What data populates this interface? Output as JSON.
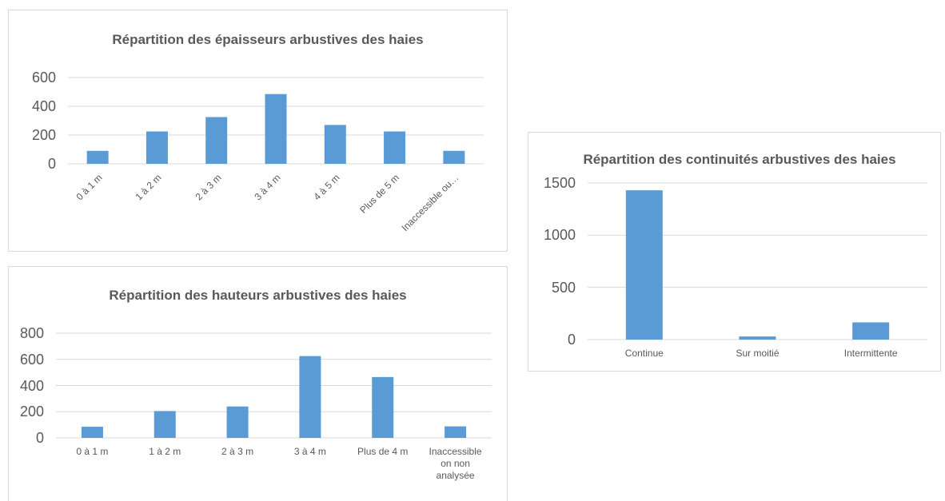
{
  "chart_data": [
    {
      "type": "bar",
      "title": "Répartition des épaisseurs arbustives des haies",
      "categories": [
        "0 à 1 m",
        "1 à 2 m",
        "2 à 3 m",
        "3 à 4 m",
        "4 à 5 m",
        "Plus de 5 m",
        "Inaccessible ou…"
      ],
      "values": [
        90,
        225,
        325,
        485,
        270,
        225,
        90
      ],
      "color": "#5b9bd5",
      "ylim": [
        0,
        600
      ],
      "yticks": [
        0,
        200,
        400,
        600
      ],
      "grid": true,
      "rotated_labels": true
    },
    {
      "type": "bar",
      "title": "Répartition des hauteurs arbustives des haies",
      "categories": [
        "0 à 1 m",
        "1 à 2 m",
        "2 à 3 m",
        "3 à 4 m",
        "Plus de 4 m",
        "Inaccessible on non analysée"
      ],
      "values": [
        85,
        205,
        240,
        625,
        465,
        88
      ],
      "color": "#5b9bd5",
      "ylim": [
        0,
        800
      ],
      "yticks": [
        0,
        200,
        400,
        600,
        800
      ],
      "grid": true,
      "rotated_labels": false
    },
    {
      "type": "bar",
      "title": "Répartition des continuités arbustives des haies",
      "categories": [
        "Continue",
        "Sur moitié",
        "Intermittente"
      ],
      "values": [
        1430,
        30,
        165
      ],
      "color": "#5b9bd5",
      "ylim": [
        0,
        1500
      ],
      "yticks": [
        0,
        500,
        1000,
        1500
      ],
      "grid": true,
      "rotated_labels": false
    }
  ]
}
